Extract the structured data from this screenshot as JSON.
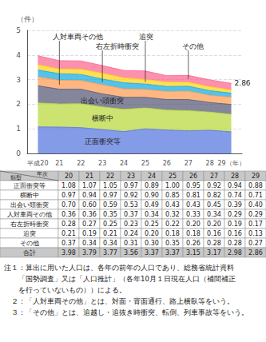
{
  "chart_data": {
    "type": "area",
    "stacked": true,
    "grid": true,
    "categories": [
      "平成20",
      "21",
      "22",
      "23",
      "24",
      "25",
      "26",
      "27",
      "28",
      "29（年）"
    ],
    "y_label": "（件）",
    "ylim": [
      0,
      5
    ],
    "yticks": [
      0,
      1,
      2,
      3,
      4,
      5
    ],
    "series": [
      {
        "name": "正面衝突等",
        "values": [
          1.08,
          1.07,
          1.05,
          0.97,
          0.89,
          1.0,
          0.95,
          0.92,
          0.94,
          0.88
        ]
      },
      {
        "name": "横断中",
        "values": [
          0.97,
          0.94,
          0.97,
          0.92,
          0.9,
          0.85,
          0.81,
          0.82,
          0.74,
          0.71
        ]
      },
      {
        "name": "出会い頭衝突",
        "values": [
          0.7,
          0.6,
          0.59,
          0.53,
          0.49,
          0.43,
          0.43,
          0.45,
          0.39,
          0.4
        ]
      },
      {
        "name": "人対車両その他",
        "values": [
          0.36,
          0.36,
          0.35,
          0.37,
          0.34,
          0.32,
          0.33,
          0.34,
          0.29,
          0.29
        ]
      },
      {
        "name": "右左折時衝突",
        "values": [
          0.28,
          0.27,
          0.25,
          0.23,
          0.25,
          0.22,
          0.2,
          0.2,
          0.19,
          0.17
        ]
      },
      {
        "name": "追突",
        "values": [
          0.21,
          0.19,
          0.21,
          0.24,
          0.2,
          0.18,
          0.18,
          0.16,
          0.16,
          0.13
        ]
      },
      {
        "name": "その他",
        "values": [
          0.37,
          0.34,
          0.34,
          0.31,
          0.3,
          0.35,
          0.26,
          0.28,
          0.28,
          0.27
        ]
      }
    ],
    "annotations": [
      {
        "text": "2.86",
        "x": "29（年）",
        "y": 2.86
      }
    ],
    "table": {
      "corner": [
        "年次",
        "類型"
      ],
      "columns": [
        "20",
        "21",
        "22",
        "23",
        "24",
        "25",
        "26",
        "27",
        "28",
        "29"
      ],
      "rows": [
        {
          "name": "正面衝突等",
          "values": [
            1.08,
            1.07,
            1.05,
            0.97,
            0.89,
            1.0,
            0.95,
            0.92,
            0.94,
            0.88
          ],
          "value_labels": [
            "1.08",
            "1.07",
            "1.05",
            "0.97",
            "0.89",
            "1.00",
            "0.95",
            "0.92",
            "0.94",
            "0.88"
          ]
        },
        {
          "name": "横断中",
          "values": [
            0.97,
            0.94,
            0.97,
            0.92,
            0.9,
            0.85,
            0.81,
            0.82,
            0.74,
            0.71
          ],
          "value_labels": [
            "0.97",
            "0.94",
            "0.97",
            "0.92",
            "0.90",
            "0.85",
            "0.81",
            "0.82",
            "0.74",
            "0.71"
          ]
        },
        {
          "name": "出会い頭衝突",
          "values": [
            0.7,
            0.6,
            0.59,
            0.53,
            0.49,
            0.43,
            0.43,
            0.45,
            0.39,
            0.4
          ],
          "value_labels": [
            "0.70",
            "0.60",
            "0.59",
            "0.53",
            "0.49",
            "0.43",
            "0.43",
            "0.45",
            "0.39",
            "0.40"
          ]
        },
        {
          "name": "人対車両その他",
          "values": [
            0.36,
            0.36,
            0.35,
            0.37,
            0.34,
            0.32,
            0.33,
            0.34,
            0.29,
            0.29
          ],
          "value_labels": [
            "0.36",
            "0.36",
            "0.35",
            "0.37",
            "0.34",
            "0.32",
            "0.33",
            "0.34",
            "0.29",
            "0.29"
          ]
        },
        {
          "name": "右左折時衝突",
          "values": [
            0.28,
            0.27,
            0.25,
            0.23,
            0.25,
            0.22,
            0.2,
            0.2,
            0.19,
            0.17
          ],
          "value_labels": [
            "0.28",
            "0.27",
            "0.25",
            "0.23",
            "0.25",
            "0.22",
            "0.20",
            "0.20",
            "0.19",
            "0.17"
          ]
        },
        {
          "name": "追突",
          "values": [
            0.21,
            0.19,
            0.21,
            0.24,
            0.2,
            0.18,
            0.18,
            0.16,
            0.16,
            0.13
          ],
          "value_labels": [
            "0.21",
            "0.19",
            "0.21",
            "0.24",
            "0.20",
            "0.18",
            "0.18",
            "0.16",
            "0.16",
            "0.13"
          ]
        },
        {
          "name": "その他",
          "values": [
            0.37,
            0.34,
            0.34,
            0.31,
            0.3,
            0.35,
            0.26,
            0.28,
            0.28,
            0.27
          ],
          "value_labels": [
            "0.37",
            "0.34",
            "0.34",
            "0.31",
            "0.30",
            "0.35",
            "0.26",
            "0.28",
            "0.28",
            "0.27"
          ]
        },
        {
          "name": "合計",
          "values": [
            3.98,
            3.79,
            3.77,
            3.56,
            3.37,
            3.37,
            3.15,
            3.17,
            2.98,
            2.86
          ],
          "value_labels": [
            "3.98",
            "3.79",
            "3.77",
            "3.56",
            "3.37",
            "3.37",
            "3.15",
            "3.17",
            "2.98",
            "2.86"
          ]
        }
      ]
    },
    "notes": [
      "注１：算出に用いた人口は、各年の前年の人口であり、総務省統計資料",
      "　　「国勢調査」又は「人口推計」（各年10月１日現在人口（補間補正",
      "　　を行っていないもの））による。",
      "　２：「人対車両その他」とは、対面・背面通行、路上横臥等をいう。",
      "　３：「その他」とは、追越し・追抜き時衝突、転倒、列車事故等をいう。"
    ]
  }
}
